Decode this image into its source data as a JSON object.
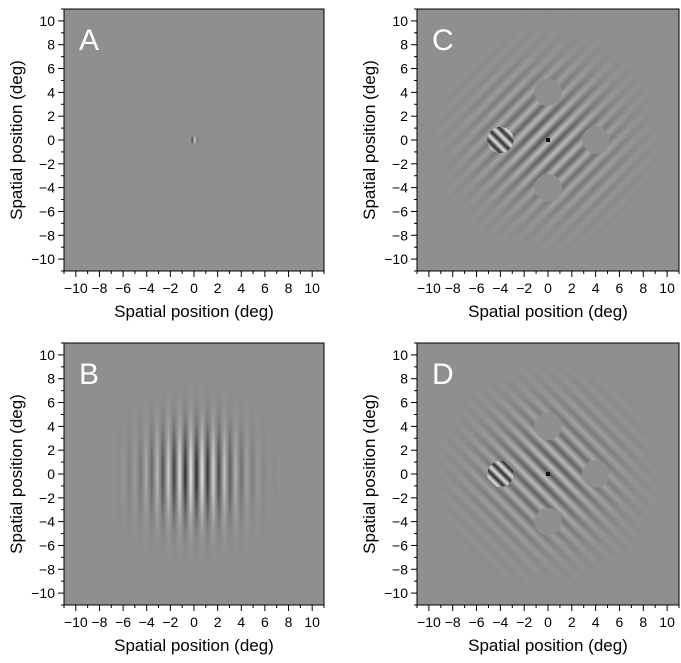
{
  "colors": {
    "background_gray": "#8f8f8f",
    "stripe_dark": "#2a2a2a",
    "stripe_light": "#e6e6e6",
    "panel_letter": "#ffffff",
    "axis": "#000000"
  },
  "axes": {
    "xlabel": "Spatial position (deg)",
    "ylabel": "Spatial position (deg)",
    "xlim": [
      -11,
      11
    ],
    "ylim": [
      -11,
      11
    ],
    "ticks": [
      -10,
      -8,
      -6,
      -4,
      -2,
      0,
      2,
      4,
      6,
      8,
      10
    ],
    "tick_labels": [
      "−10",
      "−8",
      "−6",
      "−4",
      "−2",
      "0",
      "2",
      "4",
      "6",
      "8",
      "10"
    ]
  },
  "panels": [
    {
      "letter": "A",
      "content": "small Gabor patch at origin",
      "gabor": {
        "center": [
          0,
          0
        ],
        "sigma_deg": 0.18,
        "orientation_deg": 90,
        "period_deg": 0.5
      }
    },
    {
      "letter": "B",
      "content": "large vertical Gabor",
      "gabor": {
        "center": [
          0,
          0
        ],
        "sigma_deg": 2.6,
        "orientation_deg": 90,
        "period_deg": 0.95
      }
    },
    {
      "letter": "C",
      "content": "oblique grating in disc with target and flanker holes",
      "grating": {
        "radius_deg": 11,
        "orientation_deg": 45,
        "period_deg": 1.0
      },
      "target": {
        "center": [
          -4,
          0
        ],
        "radius_deg": 1.1,
        "orientation_deg": -45,
        "period_deg": 0.7
      },
      "holes": [
        {
          "center": [
            0,
            4
          ]
        },
        {
          "center": [
            4,
            0
          ]
        },
        {
          "center": [
            0,
            -4
          ]
        }
      ],
      "fixation": [
        0,
        0
      ]
    },
    {
      "letter": "D",
      "content": "oblique grating (other orientation) in disc with target and holes",
      "grating": {
        "radius_deg": 11,
        "orientation_deg": -45,
        "period_deg": 1.0
      },
      "target": {
        "center": [
          -4,
          0
        ],
        "radius_deg": 1.1,
        "orientation_deg": -45,
        "period_deg": 0.7
      },
      "holes": [
        {
          "center": [
            0,
            4
          ]
        },
        {
          "center": [
            4,
            0
          ]
        },
        {
          "center": [
            0,
            -4
          ]
        }
      ],
      "fixation": [
        0,
        0
      ]
    }
  ]
}
